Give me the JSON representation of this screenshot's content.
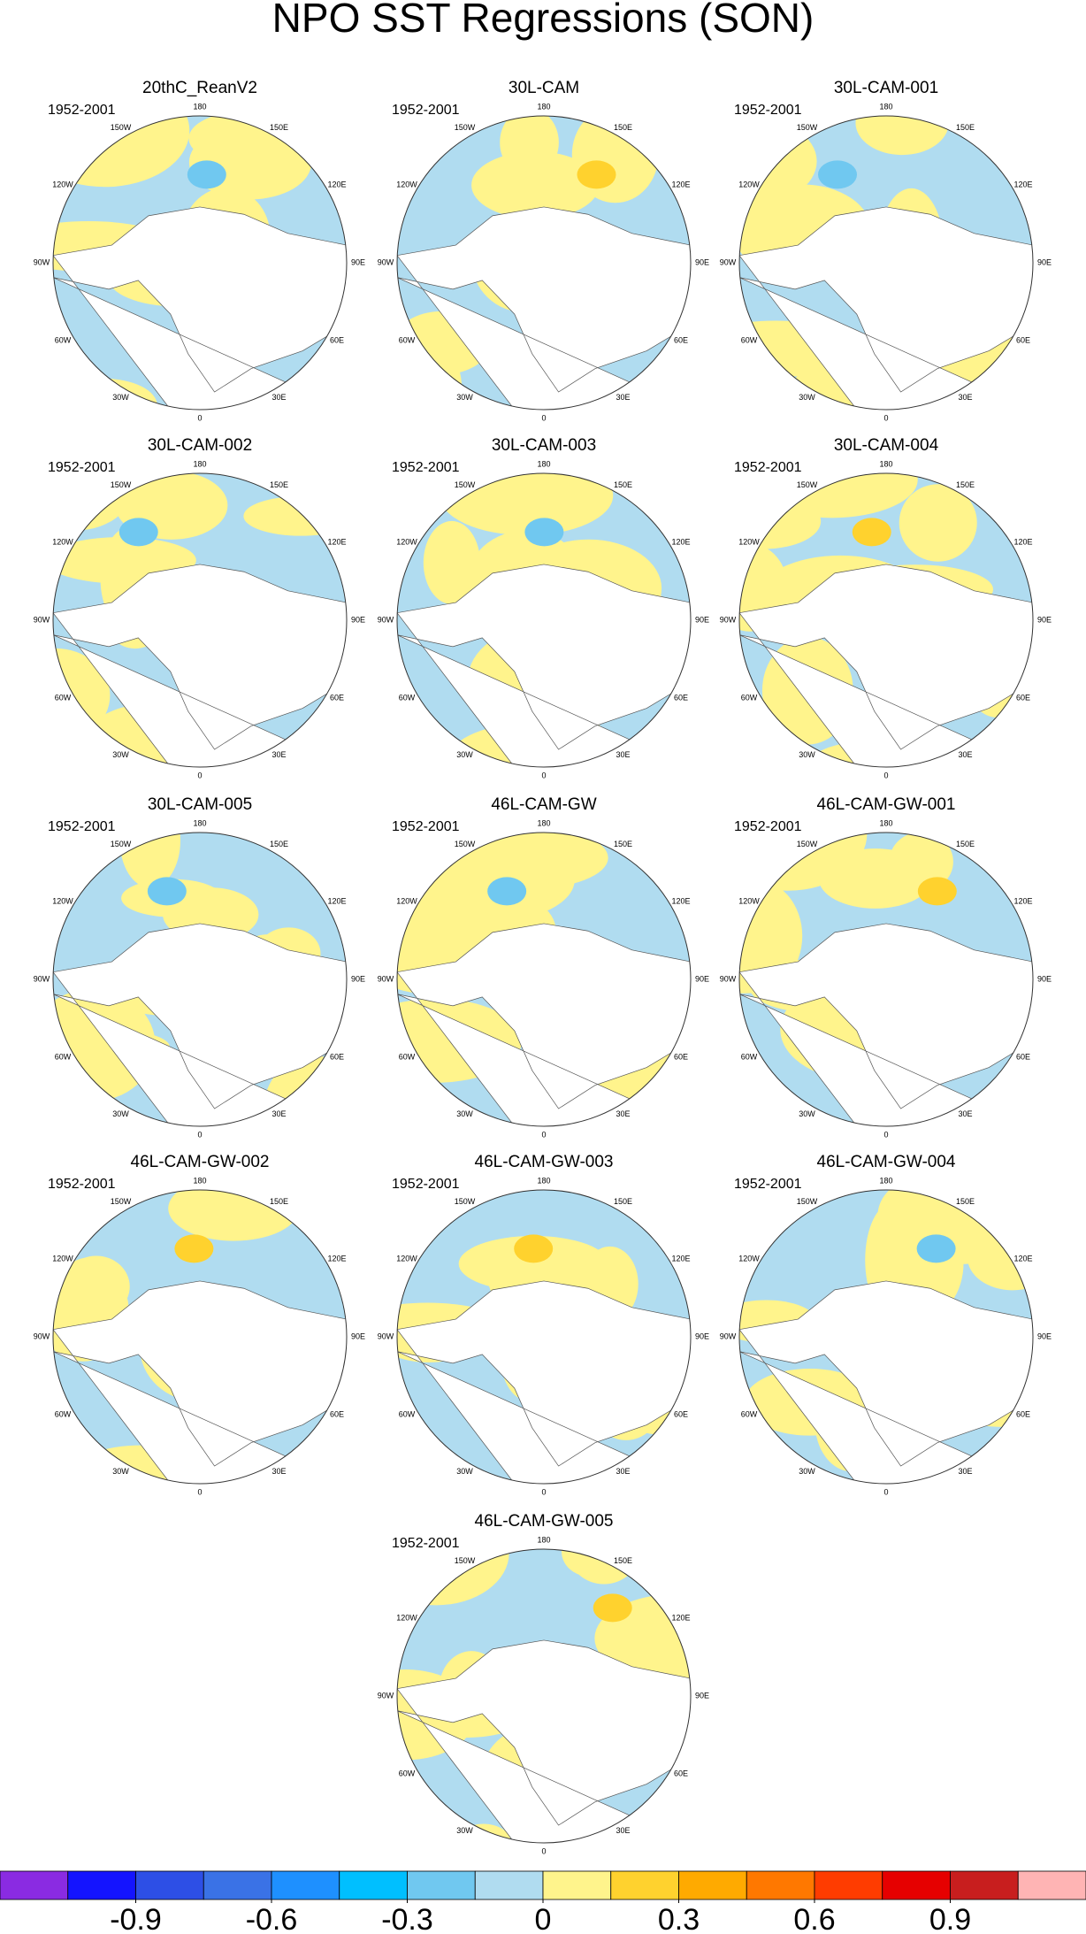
{
  "title": "NPO SST Regressions (SON)",
  "panels": [
    {
      "title": "20thC_ReanV2",
      "period": "1952-2001"
    },
    {
      "title": "30L-CAM",
      "period": "1952-2001"
    },
    {
      "title": "30L-CAM-001",
      "period": "1952-2001"
    },
    {
      "title": "30L-CAM-002",
      "period": "1952-2001"
    },
    {
      "title": "30L-CAM-003",
      "period": "1952-2001"
    },
    {
      "title": "30L-CAM-004",
      "period": "1952-2001"
    },
    {
      "title": "30L-CAM-005",
      "period": "1952-2001"
    },
    {
      "title": "46L-CAM-GW",
      "period": "1952-2001"
    },
    {
      "title": "46L-CAM-GW-001",
      "period": "1952-2001"
    },
    {
      "title": "46L-CAM-GW-002",
      "period": "1952-2001"
    },
    {
      "title": "46L-CAM-GW-003",
      "period": "1952-2001"
    },
    {
      "title": "46L-CAM-GW-004",
      "period": "1952-2001"
    },
    {
      "title": "46L-CAM-GW-005",
      "period": "1952-2001"
    }
  ],
  "lon_labels": [
    {
      "value": 0,
      "label": "0"
    },
    {
      "value": 30,
      "label": "30E"
    },
    {
      "value": 60,
      "label": "60E"
    },
    {
      "value": 90,
      "label": "90E"
    },
    {
      "value": 120,
      "label": "120E"
    },
    {
      "value": 150,
      "label": "150E"
    },
    {
      "value": 180,
      "label": "180"
    },
    {
      "value": -150,
      "label": "150W"
    },
    {
      "value": -120,
      "label": "120W"
    },
    {
      "value": -90,
      "label": "90W"
    },
    {
      "value": -60,
      "label": "60W"
    },
    {
      "value": -30,
      "label": "30W"
    }
  ],
  "colorbar": {
    "xlim": [
      -1.2,
      1.2
    ],
    "colors": [
      "#8a2be2",
      "#1414ff",
      "#2d4fe6",
      "#3a72e6",
      "#1e90ff",
      "#00bfff",
      "#70c8f0",
      "#b0dcf0",
      "#fff48c",
      "#ffd22e",
      "#ffaa00",
      "#ff7800",
      "#ff3c00",
      "#e60000",
      "#c81e1e",
      "#ffb4b4"
    ],
    "ticks": [
      -0.9,
      -0.6,
      -0.3,
      0,
      0.3,
      0.6,
      0.9
    ]
  }
}
